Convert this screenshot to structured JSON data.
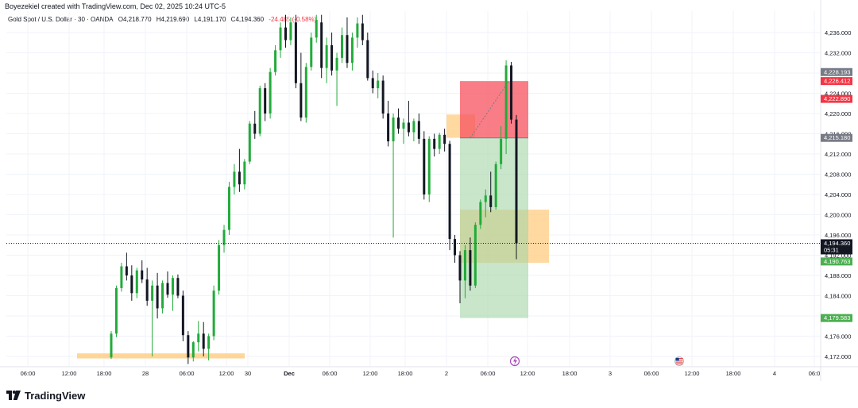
{
  "header": {
    "created_line": "Boyezekiel created with TradingView.com, Dec 02, 2025 10:24 UTC-5"
  },
  "legend": {
    "symbol": "Gold Spot / U.S. Dollar · 30 · OANDA",
    "open": "O4,218.770",
    "high": "H4,219.690",
    "low": "L4,191.170",
    "close": "C4,194.360",
    "change": "-24.485 (-0.58%)"
  },
  "footer": {
    "brand": "TradingView"
  },
  "colors": {
    "up": "#26a69a",
    "up_candle": "#22ab3a",
    "down": "#131722",
    "risk_zone": "#f7525f",
    "reward_zone": "#a5d6a7",
    "orange_zone": "#ffcc80",
    "grid": "#f0f3fa"
  },
  "chart_data": {
    "type": "candlestick",
    "symbol": "XAUUSD",
    "timeframe": "30",
    "ylim": [
      4170,
      4240
    ],
    "y_ticks": [
      "4,172.000",
      "4,176.000",
      "4,180.000",
      "4,184.000",
      "4,188.000",
      "4,192.000",
      "4,196.000",
      "4,200.000",
      "4,204.000",
      "4,208.000",
      "4,212.000",
      "4,216.000",
      "4,220.000",
      "4,224.000",
      "4,228.000",
      "4,232.000",
      "4,236.000"
    ],
    "x_ticks": [
      "06:00",
      "12:00",
      "18:00",
      "28",
      "06:00",
      "12:00",
      "30",
      "Dec",
      "06:00",
      "12:00",
      "18:00",
      "2",
      "06:00",
      "12:00",
      "18:00",
      "3",
      "06:00",
      "12:00",
      "18:00",
      "4",
      "06:0"
    ],
    "price_labels": [
      {
        "text": "4,228.193",
        "value": 4228.193,
        "kind": "target-gray"
      },
      {
        "text": "4,226.412",
        "value": 4226.412,
        "kind": "stop"
      },
      {
        "text": "4,222.890",
        "value": 4222.89,
        "kind": "stop-red"
      },
      {
        "text": "4,215.180",
        "value": 4215.18,
        "kind": "entry"
      },
      {
        "text": "4,194.360",
        "value": 4194.36,
        "kind": "last",
        "countdown": "05:31"
      },
      {
        "text": "4,190.763",
        "value": 4190.763,
        "kind": "target"
      },
      {
        "text": "4,179.583",
        "value": 4179.583,
        "kind": "target-dark"
      }
    ],
    "last_price": 4194.36,
    "short_position": {
      "entry": 4215.18,
      "stop": 4226.412,
      "target": 4179.583
    },
    "zones": [
      {
        "name": "demand-zone-low",
        "top": 4172.6,
        "bottom": 4171.6
      },
      {
        "name": "fvg-zone",
        "top": 4201.0,
        "bottom": 4190.5
      },
      {
        "name": "supply-zone",
        "top": 4219.8,
        "bottom": 4215.2
      }
    ],
    "candles": [
      [
        4171.8,
        4177.0,
        4171.5,
        4176.5
      ],
      [
        4176.5,
        4186.0,
        4175.8,
        4185.5
      ],
      [
        4185.5,
        4190.5,
        4184.8,
        4189.8
      ],
      [
        4189.8,
        4192.5,
        4187.0,
        4188.0
      ],
      [
        4188.0,
        4190.0,
        4183.0,
        4184.5
      ],
      [
        4184.5,
        4189.5,
        4183.5,
        4189.0
      ],
      [
        4189.0,
        4191.0,
        4186.5,
        4187.2
      ],
      [
        4187.2,
        4189.5,
        4182.0,
        4183.0
      ],
      [
        4183.0,
        4187.0,
        4172.0,
        4186.0
      ],
      [
        4186.0,
        4188.5,
        4179.5,
        4181.5
      ],
      [
        4181.5,
        4187.0,
        4180.5,
        4186.5
      ],
      [
        4186.5,
        4188.8,
        4183.6,
        4184.2
      ],
      [
        4184.2,
        4188.0,
        4181.0,
        4187.5
      ],
      [
        4187.5,
        4188.2,
        4183.5,
        4184.0
      ],
      [
        4184.0,
        4185.0,
        4175.0,
        4176.2
      ],
      [
        4176.2,
        4177.0,
        4170.5,
        4171.8
      ],
      [
        4171.8,
        4175.0,
        4171.0,
        4174.8
      ],
      [
        4174.8,
        4179.0,
        4173.0,
        4176.5
      ],
      [
        4176.5,
        4178.8,
        4172.0,
        4173.5
      ],
      [
        4173.5,
        4176.5,
        4171.2,
        4176.0
      ],
      [
        4176.0,
        4186.0,
        4175.2,
        4185.0
      ],
      [
        4185.0,
        4195.0,
        4184.2,
        4194.0
      ],
      [
        4194.0,
        4198.0,
        4192.5,
        4197.0
      ],
      [
        4197.0,
        4206.5,
        4196.0,
        4205.5
      ],
      [
        4205.5,
        4210.0,
        4204.0,
        4208.5
      ],
      [
        4208.5,
        4213.0,
        4204.5,
        4206.0
      ],
      [
        4206.0,
        4211.0,
        4205.0,
        4210.5
      ],
      [
        4210.5,
        4218.5,
        4210.0,
        4218.0
      ],
      [
        4218.0,
        4220.5,
        4215.0,
        4216.0
      ],
      [
        4216.0,
        4225.5,
        4215.5,
        4225.0
      ],
      [
        4225.0,
        4226.0,
        4218.5,
        4220.0
      ],
      [
        4220.0,
        4229.0,
        4219.0,
        4228.2
      ],
      [
        4228.2,
        4233.5,
        4227.5,
        4232.5
      ],
      [
        4232.5,
        4238.0,
        4231.0,
        4237.0
      ],
      [
        4237.0,
        4239.5,
        4233.0,
        4234.5
      ],
      [
        4234.5,
        4239.0,
        4233.5,
        4238.0
      ],
      [
        4238.0,
        4239.5,
        4225.0,
        4226.0
      ],
      [
        4226.0,
        4232.0,
        4218.5,
        4219.2
      ],
      [
        4219.2,
        4230.0,
        4218.2,
        4229.2
      ],
      [
        4229.2,
        4236.0,
        4228.5,
        4235.0
      ],
      [
        4235.0,
        4239.5,
        4234.0,
        4238.5
      ],
      [
        4238.0,
        4239.5,
        4227.0,
        4229.0
      ],
      [
        4229.0,
        4235.0,
        4226.0,
        4233.5
      ],
      [
        4233.5,
        4236.0,
        4227.5,
        4228.5
      ],
      [
        4228.5,
        4232.0,
        4221.5,
        4231.0
      ],
      [
        4231.0,
        4237.0,
        4230.0,
        4235.5
      ],
      [
        4235.5,
        4239.0,
        4229.0,
        4230.0
      ],
      [
        4230.0,
        4236.0,
        4228.5,
        4235.0
      ],
      [
        4235.0,
        4239.0,
        4233.0,
        4237.8
      ],
      [
        4237.8,
        4239.5,
        4233.5,
        4234.5
      ],
      [
        4234.5,
        4236.0,
        4226.5,
        4227.0
      ],
      [
        4227.0,
        4228.5,
        4224.0,
        4225.0
      ],
      [
        4225.0,
        4228.0,
        4223.0,
        4226.5
      ],
      [
        4226.5,
        4227.5,
        4219.0,
        4220.0
      ],
      [
        4220.0,
        4222.5,
        4213.5,
        4214.5
      ],
      [
        4214.5,
        4220.0,
        4195.5,
        4219.2
      ],
      [
        4219.2,
        4221.0,
        4216.0,
        4217.0
      ],
      [
        4217.0,
        4219.0,
        4214.0,
        4218.2
      ],
      [
        4218.2,
        4222.5,
        4215.5,
        4216.3
      ],
      [
        4216.3,
        4219.0,
        4214.5,
        4218.5
      ],
      [
        4218.5,
        4220.0,
        4214.0,
        4215.0
      ],
      [
        4215.0,
        4216.5,
        4203.0,
        4204.0
      ],
      [
        4204.0,
        4215.5,
        4202.5,
        4215.0
      ],
      [
        4215.0,
        4216.0,
        4211.5,
        4213.0
      ],
      [
        4213.0,
        4216.2,
        4212.0,
        4215.8
      ],
      [
        4215.8,
        4217.0,
        4212.5,
        4214.0
      ],
      [
        4214.0,
        4214.6,
        4193.0,
        4195.2
      ],
      [
        4195.2,
        4196.0,
        4190.5,
        4192.0
      ],
      [
        4192.0,
        4192.8,
        4182.5,
        4187.0
      ],
      [
        4187.0,
        4194.0,
        4183.5,
        4193.0
      ],
      [
        4193.0,
        4195.5,
        4185.0,
        4186.0
      ],
      [
        4186.0,
        4198.5,
        4185.5,
        4198.0
      ],
      [
        4198.0,
        4203.0,
        4197.2,
        4202.5
      ],
      [
        4202.5,
        4205.0,
        4199.5,
        4203.8
      ],
      [
        4203.8,
        4208.5,
        4200.5,
        4201.5
      ],
      [
        4201.5,
        4210.5,
        4201.0,
        4210.0
      ],
      [
        4210.0,
        4217.5,
        4209.0,
        4215.0
      ],
      [
        4215.0,
        4230.5,
        4212.0,
        4229.5
      ],
      [
        4229.5,
        4230.2,
        4218.0,
        4218.8
      ],
      [
        4218.8,
        4219.7,
        4191.2,
        4194.36
      ]
    ]
  }
}
